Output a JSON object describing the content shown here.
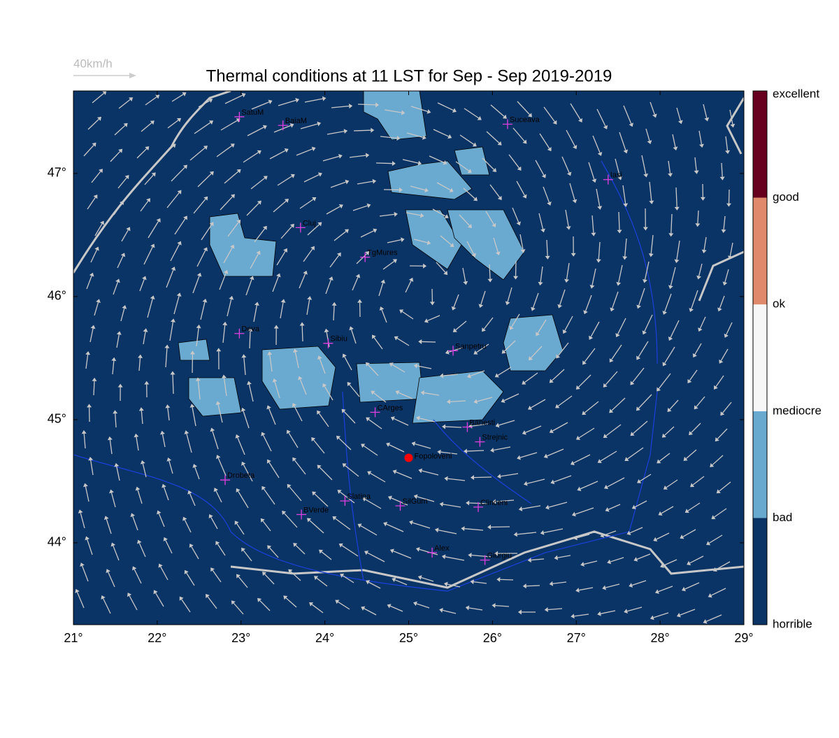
{
  "title": "Thermal conditions at 11 LST for Sep - Sep  2019-2019",
  "wind_reference": "40km/h",
  "map": {
    "xlim": [
      21,
      29
    ],
    "ylim": [
      43.335,
      47.67
    ],
    "xticks": [
      {
        "value": 21,
        "label": "21°"
      },
      {
        "value": 22,
        "label": "22°"
      },
      {
        "value": 23,
        "label": "23°"
      },
      {
        "value": 24,
        "label": "24°"
      },
      {
        "value": 25,
        "label": "25°"
      },
      {
        "value": 26,
        "label": "26°"
      },
      {
        "value": 27,
        "label": "27°"
      },
      {
        "value": 28,
        "label": "28°"
      },
      {
        "value": 29,
        "label": "29°"
      }
    ],
    "yticks": [
      {
        "value": 44,
        "label": "44°"
      },
      {
        "value": 45,
        "label": "45°"
      },
      {
        "value": 46,
        "label": "46°"
      },
      {
        "value": 47,
        "label": "47°"
      }
    ],
    "cities": [
      {
        "name": "SatuM",
        "lon": 22.98,
        "lat": 47.46
      },
      {
        "name": "BaiaM",
        "lon": 23.5,
        "lat": 47.39
      },
      {
        "name": "Suceava",
        "lon": 26.18,
        "lat": 47.4
      },
      {
        "name": "Iasi",
        "lon": 27.38,
        "lat": 46.95
      },
      {
        "name": "Cluj",
        "lon": 23.71,
        "lat": 46.56
      },
      {
        "name": "TgMures",
        "lon": 24.48,
        "lat": 46.32
      },
      {
        "name": "Deva",
        "lon": 22.98,
        "lat": 45.7
      },
      {
        "name": "Sibiu",
        "lon": 24.04,
        "lat": 45.62
      },
      {
        "name": "Sanpetru",
        "lon": 25.53,
        "lat": 45.56
      },
      {
        "name": "CArges",
        "lon": 24.6,
        "lat": 45.06
      },
      {
        "name": "Banesti",
        "lon": 25.7,
        "lat": 44.94
      },
      {
        "name": "Strejnic",
        "lon": 25.85,
        "lat": 44.82
      },
      {
        "name": "Drobeta",
        "lon": 22.81,
        "lat": 44.51
      },
      {
        "name": "Slatina",
        "lon": 24.24,
        "lat": 44.34
      },
      {
        "name": "SilGum",
        "lon": 24.9,
        "lat": 44.3
      },
      {
        "name": "Clinceni",
        "lon": 25.83,
        "lat": 44.29
      },
      {
        "name": "BVerde",
        "lon": 23.72,
        "lat": 44.23
      },
      {
        "name": "Alex",
        "lon": 25.28,
        "lat": 43.92
      },
      {
        "name": "Giurgiu",
        "lon": 25.91,
        "lat": 43.86
      }
    ],
    "site": {
      "name": "Fopoloveni",
      "lon": 25.0,
      "lat": 44.69
    }
  },
  "colorbar": {
    "labels": [
      "horrible",
      "bad",
      "mediocre",
      "ok",
      "good",
      "excellent"
    ],
    "colors": [
      "#0b3466",
      "#67a9cf",
      "#f7f7f7",
      "#e08a6b",
      "#67001f"
    ]
  }
}
